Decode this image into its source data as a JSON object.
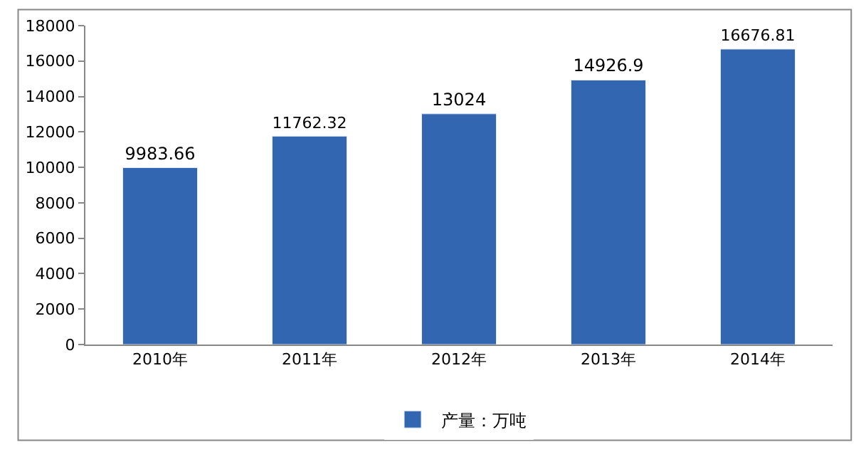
{
  "chart_data": {
    "type": "bar",
    "categories": [
      "2010年",
      "2011年",
      "2012年",
      "2013年",
      "2014年"
    ],
    "series": [
      {
        "name": "产量：万吨",
        "color": "#3366b0",
        "values": [
          9983.66,
          11762.32,
          13024,
          14926.9,
          16676.81
        ]
      }
    ],
    "ylim": [
      0,
      18000
    ],
    "yticks": [
      0,
      2000,
      4000,
      6000,
      8000,
      10000,
      12000,
      14000,
      16000,
      18000
    ],
    "data_labels": true,
    "grid": false,
    "legend": "bottom"
  }
}
